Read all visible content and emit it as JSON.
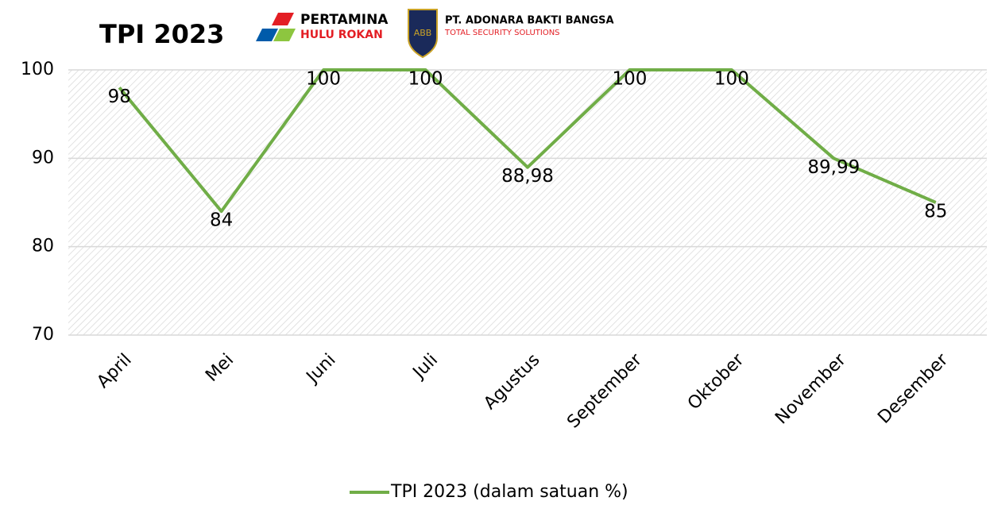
{
  "chart_data": {
    "type": "line",
    "title": "TPI 2023",
    "annotations": [
      "PERTAMINA",
      "HULU ROKAN",
      "ABB",
      "PT. ADONARA BAKTI BANGSA",
      "TOTAL SECURITY SOLUTIONS"
    ],
    "categories": [
      "April",
      "Mei",
      "Juni",
      "Juli",
      "Agustus",
      "September",
      "Oktober",
      "November",
      "Desember"
    ],
    "series": [
      {
        "name": "TPI 2023 (dalam satuan %)",
        "color": "#70ad47",
        "values": [
          98,
          84,
          100,
          100,
          88.98,
          100,
          100,
          89.99,
          85
        ],
        "value_labels": [
          "98",
          "84",
          "100",
          "100",
          "88,98",
          "100",
          "100",
          "89,99",
          "85"
        ]
      }
    ],
    "ylim": [
      70,
      100
    ],
    "yticks": [
      70,
      80,
      90,
      100
    ],
    "grid": true,
    "legend": "bottom"
  }
}
